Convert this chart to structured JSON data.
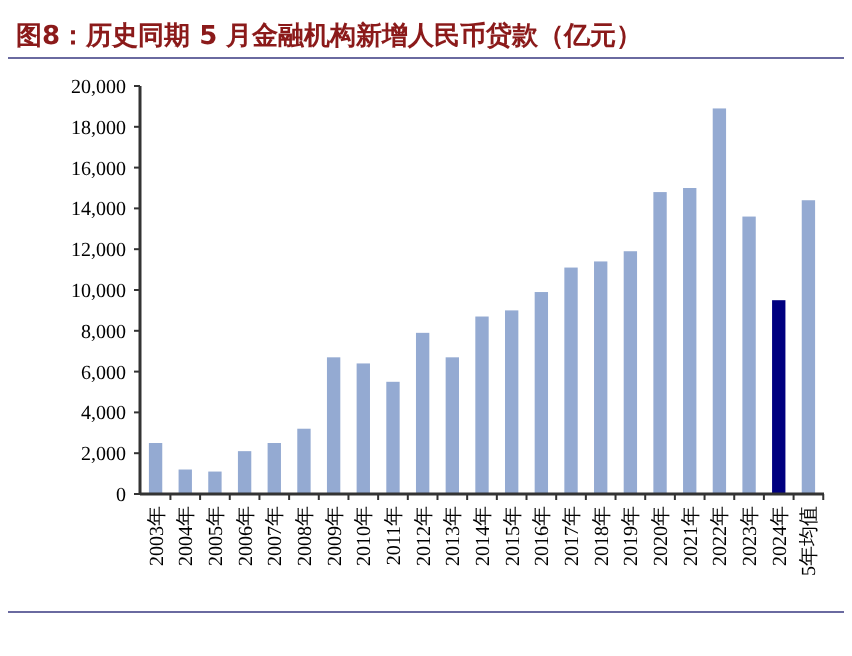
{
  "chart_data": {
    "type": "bar",
    "title": "图8：历史同期 5 月金融机构新增人民币贷款（亿元）",
    "categories": [
      "2003年",
      "2004年",
      "2005年",
      "2006年",
      "2007年",
      "2008年",
      "2009年",
      "2010年",
      "2011年",
      "2012年",
      "2013年",
      "2014年",
      "2015年",
      "2016年",
      "2017年",
      "2018年",
      "2019年",
      "2020年",
      "2021年",
      "2022年",
      "2023年",
      "2024年",
      "5年均值"
    ],
    "values": [
      2500,
      1200,
      1100,
      2100,
      2500,
      3200,
      6700,
      6400,
      5500,
      7900,
      6700,
      8700,
      9000,
      9900,
      11100,
      11400,
      11900,
      14800,
      15000,
      18900,
      13600,
      9500,
      14400
    ],
    "colors": [
      "#94aad2",
      "#94aad2",
      "#94aad2",
      "#94aad2",
      "#94aad2",
      "#94aad2",
      "#94aad2",
      "#94aad2",
      "#94aad2",
      "#94aad2",
      "#94aad2",
      "#94aad2",
      "#94aad2",
      "#94aad2",
      "#94aad2",
      "#94aad2",
      "#94aad2",
      "#94aad2",
      "#94aad2",
      "#94aad2",
      "#94aad2",
      "#000080",
      "#94aad2"
    ],
    "ylim": [
      0,
      20000
    ],
    "yticks": [
      {
        "value": 0,
        "label": "0"
      },
      {
        "value": 2000,
        "label": "2,000"
      },
      {
        "value": 4000,
        "label": "4,000"
      },
      {
        "value": 6000,
        "label": "6,000"
      },
      {
        "value": 8000,
        "label": "8,000"
      },
      {
        "value": 10000,
        "label": "10,000"
      },
      {
        "value": 12000,
        "label": "12,000"
      },
      {
        "value": 14000,
        "label": "14,000"
      },
      {
        "value": 16000,
        "label": "16,000"
      },
      {
        "value": 18000,
        "label": "18,000"
      },
      {
        "value": 20000,
        "label": "20,000"
      }
    ],
    "grid": false
  }
}
